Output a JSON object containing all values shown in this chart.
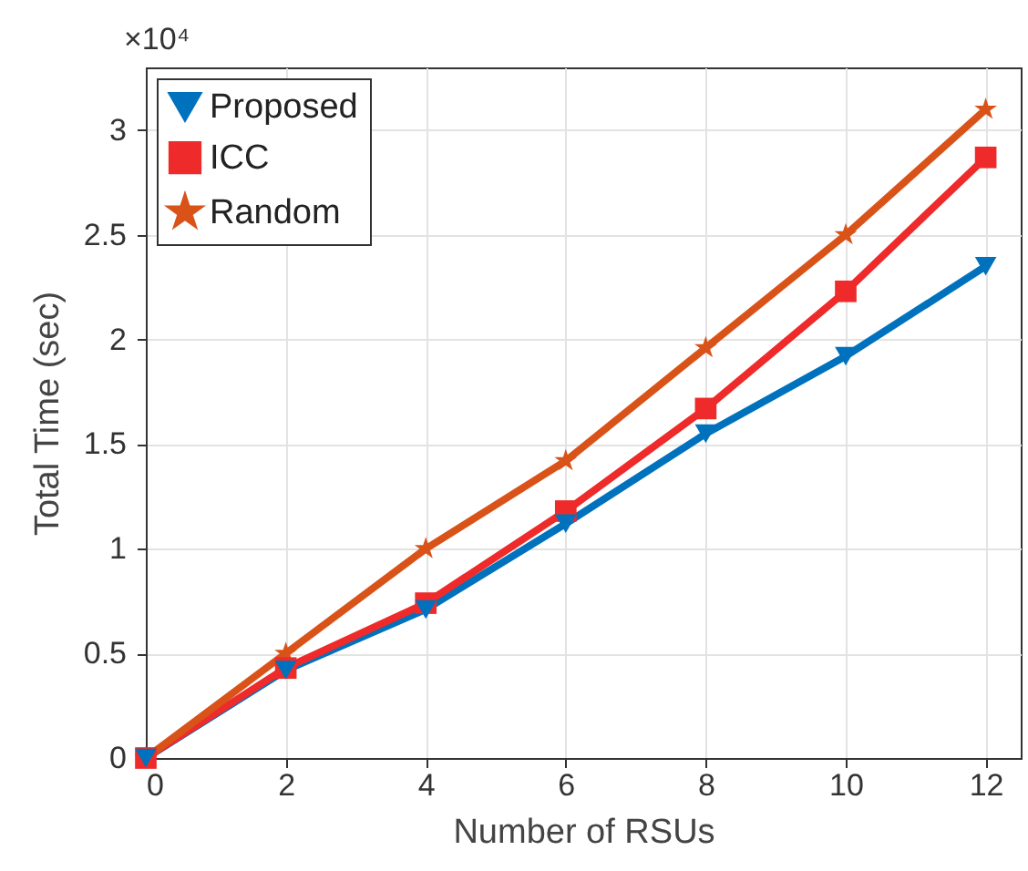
{
  "chart_data": {
    "type": "line",
    "xlabel": "Number of RSUs",
    "ylabel": "Total Time (sec)",
    "annotations": [
      "×10⁴"
    ],
    "x": [
      0,
      2,
      4,
      6,
      8,
      10,
      12
    ],
    "series": [
      {
        "name": "Proposed",
        "color": "#0072bd",
        "marker": "triangle",
        "values": [
          0,
          0.42,
          0.71,
          1.12,
          1.55,
          1.92,
          2.35
        ]
      },
      {
        "name": " ICC",
        "color": "#ee2a2a",
        "marker": "square",
        "values": [
          0,
          0.43,
          0.74,
          1.18,
          1.67,
          2.23,
          2.87
        ]
      },
      {
        "name": "Random",
        "color": "#d95319",
        "marker": "star",
        "values": [
          0,
          0.5,
          1.0,
          1.42,
          1.96,
          2.5,
          3.1
        ]
      }
    ],
    "xlim": [
      0,
      12.5
    ],
    "xticks": [
      0,
      2,
      4,
      6,
      8,
      10,
      12
    ],
    "ylim": [
      0,
      3.3
    ],
    "yticks": [
      0,
      0.5,
      1,
      1.5,
      2,
      2.5,
      3
    ],
    "grid": true,
    "legend": "top left",
    "line_style": "solid"
  }
}
